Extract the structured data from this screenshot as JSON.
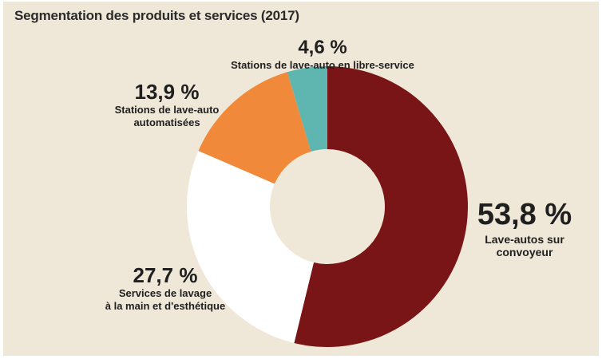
{
  "chart_data": {
    "type": "pie",
    "title": "Segmentation des produits et services (2017)",
    "donut": true,
    "slices": [
      {
        "label": "Lave-autos sur\nconvoyeur",
        "value": 53.8,
        "value_label": "53,8 %",
        "color": "#7a1517"
      },
      {
        "label": "Services de lavage\nà la main et d'esthétique",
        "value": 27.7,
        "value_label": "27,7 %",
        "color": "#ffffff"
      },
      {
        "label": "Stations de lave-auto\nautomatisées",
        "value": 13.9,
        "value_label": "13,9 %",
        "color": "#f08a3a"
      },
      {
        "label": "Stations de lave-auto en libre-service",
        "value": 4.6,
        "value_label": "4,6 %",
        "color": "#5fb6b0"
      }
    ],
    "background": "#efe8d8"
  }
}
